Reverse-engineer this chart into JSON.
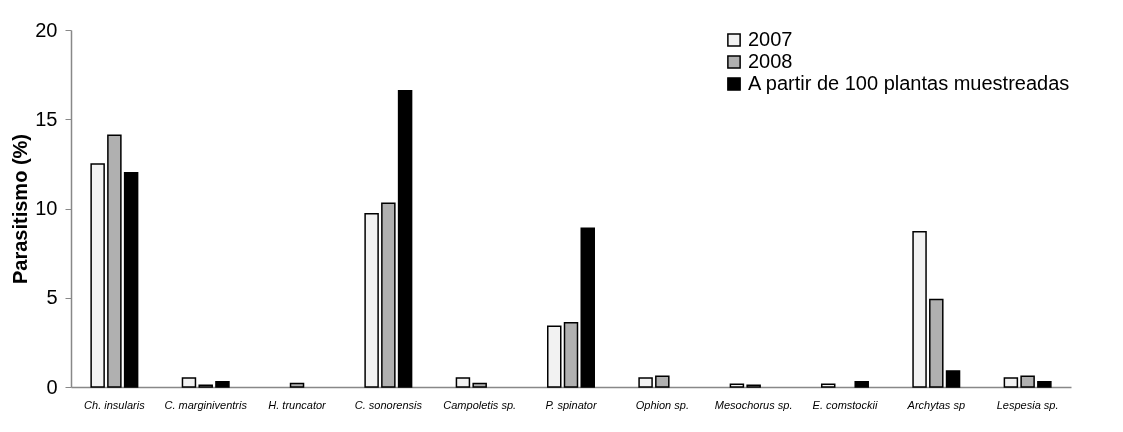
{
  "chart_data": {
    "type": "bar",
    "ylabel": "Parasitismo (%)",
    "categories": [
      "Ch. insularis",
      "C. marginiventris",
      "H. truncator",
      "C. sonorensis",
      "Campoletis sp.",
      "P. spinator",
      "Ophion sp.",
      "Mesochorus sp.",
      "E. comstockii",
      "Archytas sp",
      "Lespesia sp."
    ],
    "series": [
      {
        "name": "2007",
        "color": "#f2f2f2",
        "values": [
          12.5,
          0.5,
          null,
          9.7,
          0.5,
          3.4,
          0.5,
          0.15,
          0.15,
          8.7,
          0.5
        ]
      },
      {
        "name": "2008",
        "color": "#b0b0b0",
        "values": [
          14.1,
          0.1,
          0.2,
          10.3,
          0.2,
          3.6,
          0.6,
          0.1,
          null,
          4.9,
          0.6
        ]
      },
      {
        "name": "A partir de 100 plantas muestreadas",
        "color": "#000000",
        "values": [
          12.0,
          0.3,
          null,
          16.6,
          null,
          8.9,
          null,
          null,
          0.3,
          0.9,
          0.3
        ]
      }
    ],
    "ylim": [
      0,
      20
    ],
    "yticks": [
      0,
      5,
      10,
      15,
      20
    ],
    "grid": false,
    "legend": "top right"
  }
}
